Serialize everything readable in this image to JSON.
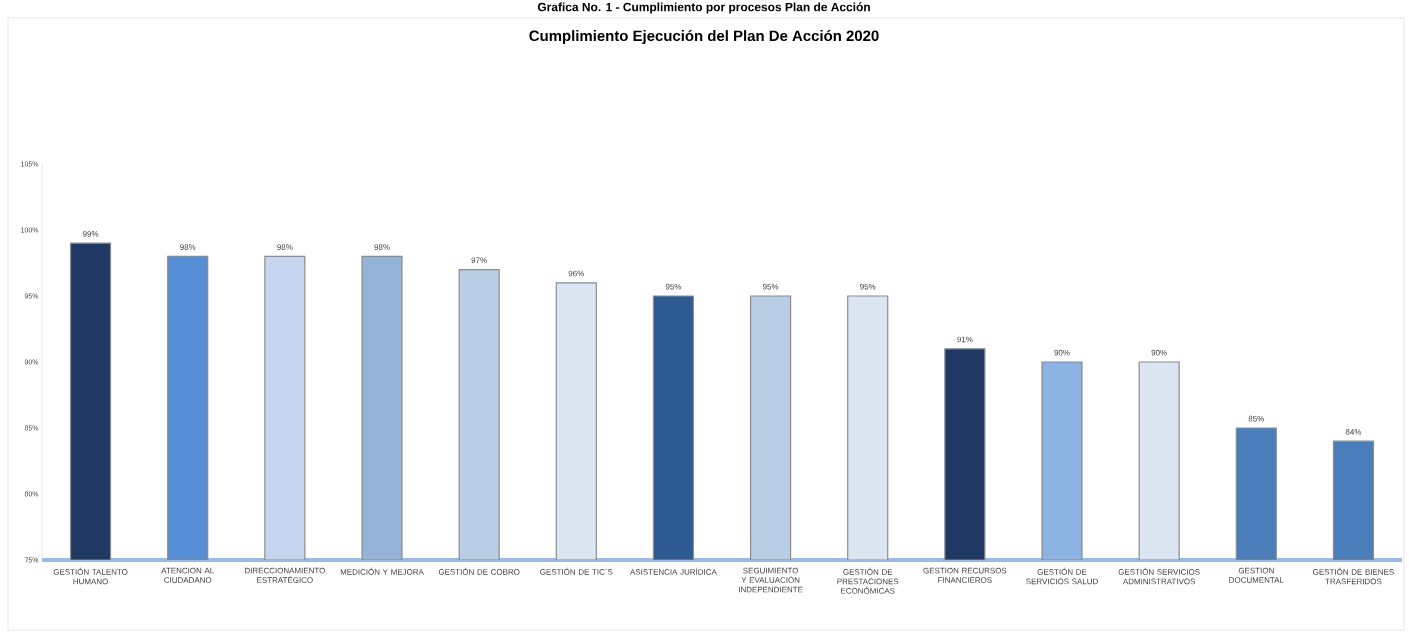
{
  "chart_data": {
    "type": "bar",
    "title": "Grafica No. 1 - Cumplimiento por procesos Plan de Acción",
    "subtitle": "Cumplimiento  Ejecución del Plan De Acción 2020",
    "categories": [
      "GESTIÓN TALENTO HUMANO",
      "ATENCION AL CIUDADANO",
      "DIRECCIONAMIENTO ESTRATÉGICO",
      "MEDICIÓN Y MEJORA",
      "GESTIÓN DE COBRO",
      "GESTIÓN DE TIC´S",
      "ASISTENCIA JURÍDICA",
      "SEGUIMIENTO Y EVALUACIÓN INDEPENDIENTE",
      "GESTIÓN DE PRESTACIONES ECONÓMICAS",
      "GESTION RECURSOS FINANCIEROS",
      "GESTIÓN DE SERVICIOS SALUD",
      "GESTIÓN SERVICIOS ADMINISTRATIVOS",
      "GESTION DOCUMENTAL",
      "GESTIÓN DE BIENES TRASFERIDOS"
    ],
    "values": [
      99,
      98,
      98,
      98,
      97,
      96,
      95,
      95,
      95,
      91,
      90,
      90,
      85,
      84
    ],
    "value_labels": [
      "99%",
      "98%",
      "98%",
      "98%",
      "97%",
      "96%",
      "95%",
      "95%",
      "95%",
      "91%",
      "90%",
      "90%",
      "85%",
      "84%"
    ],
    "colors": [
      "#1f3864",
      "#558ed5",
      "#c6d6ee",
      "#95b3d7",
      "#b9cde5",
      "#dce6f2",
      "#2e5a94",
      "#b9cde5",
      "#dce6f2",
      "#1f3864",
      "#8db3e2",
      "#dce6f2",
      "#4a7ebb",
      "#4a7ebb"
    ],
    "ylim": [
      75,
      105
    ],
    "yticks": [
      {
        "value": 75,
        "label": "75%"
      },
      {
        "value": 80,
        "label": "80%"
      },
      {
        "value": 85,
        "label": "85%"
      },
      {
        "value": 90,
        "label": "90%"
      },
      {
        "value": 95,
        "label": "95%"
      },
      {
        "value": 100,
        "label": "100%"
      },
      {
        "value": 105,
        "label": "105%"
      }
    ]
  }
}
